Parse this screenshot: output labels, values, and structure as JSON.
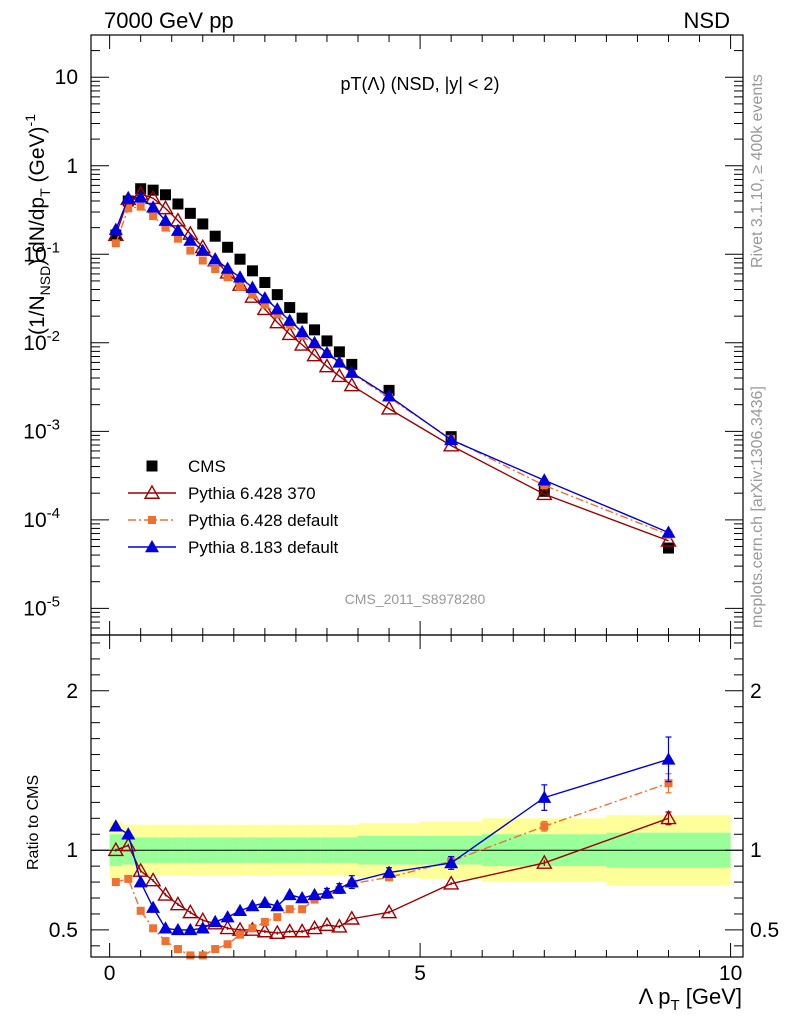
{
  "header": {
    "left_label": "7000 GeV pp",
    "right_label": "NSD"
  },
  "side_text": {
    "rivet": "Rivet 3.1.10, ≥ 400k events",
    "mcplots": "mcplots.cern.ch [arXiv:1306.3436]"
  },
  "watermark": "CMS_2011_S8978280",
  "chart_data": [
    {
      "type": "line",
      "title": "pT(Λ) (NSD, |y| < 2)",
      "xlabel": "Λ p_T [GeV]",
      "ylabel": "(1/N_NSD) dN/dp_T (GeV)^-1",
      "yscale": "log",
      "xlim": [
        -0.3,
        10.2
      ],
      "ylim": [
        5e-06,
        30
      ],
      "legend": [
        "CMS",
        "Pythia 6.428 370",
        "Pythia 6.428 default",
        "Pythia 8.183 default"
      ],
      "legend_position": "bottom-left",
      "series": [
        {
          "name": "CMS",
          "marker": "square",
          "color": "#000000",
          "x": [
            0.1,
            0.3,
            0.5,
            0.7,
            0.9,
            1.1,
            1.3,
            1.5,
            1.7,
            1.9,
            2.1,
            2.3,
            2.5,
            2.7,
            2.9,
            3.1,
            3.3,
            3.5,
            3.7,
            3.9,
            4.5,
            5.5,
            7.0,
            9.0
          ],
          "y": [
            0.165,
            0.4,
            0.55,
            0.53,
            0.47,
            0.37,
            0.29,
            0.22,
            0.16,
            0.12,
            0.088,
            0.065,
            0.048,
            0.035,
            0.025,
            0.019,
            0.014,
            0.0105,
            0.0079,
            0.0057,
            0.0029,
            0.00087,
            0.00021,
            4.8e-05
          ]
        },
        {
          "name": "Pythia 6.428 370",
          "marker": "open-triangle",
          "color": "#a00000",
          "x": [
            0.1,
            0.3,
            0.5,
            0.7,
            0.9,
            1.1,
            1.3,
            1.5,
            1.7,
            1.9,
            2.1,
            2.3,
            2.5,
            2.7,
            2.9,
            3.1,
            3.3,
            3.5,
            3.7,
            3.9,
            4.5,
            5.5,
            7.0,
            9.0
          ],
          "y": [
            0.165,
            0.42,
            0.48,
            0.43,
            0.33,
            0.24,
            0.17,
            0.12,
            0.085,
            0.062,
            0.045,
            0.033,
            0.024,
            0.017,
            0.0125,
            0.0095,
            0.0072,
            0.0054,
            0.0042,
            0.0033,
            0.0018,
            0.00069,
            0.000195,
            5.8e-05
          ]
        },
        {
          "name": "Pythia 6.428 default",
          "marker": "square-small",
          "color": "#f07030",
          "x": [
            0.1,
            0.3,
            0.5,
            0.7,
            0.9,
            1.1,
            1.3,
            1.5,
            1.7,
            1.9,
            2.1,
            2.3,
            2.5,
            2.7,
            2.9,
            3.1,
            3.3,
            3.5,
            3.7,
            3.9,
            4.5,
            5.5,
            7.0,
            9.0
          ],
          "y": [
            0.133,
            0.33,
            0.345,
            0.27,
            0.2,
            0.15,
            0.11,
            0.085,
            0.068,
            0.055,
            0.043,
            0.035,
            0.027,
            0.021,
            0.016,
            0.012,
            0.0095,
            0.0075,
            0.0059,
            0.0045,
            0.0024,
            0.00082,
            0.000245,
            6.8e-05
          ]
        },
        {
          "name": "Pythia 8.183 default",
          "marker": "filled-triangle",
          "color": "#0000dd",
          "x": [
            0.1,
            0.3,
            0.5,
            0.7,
            0.9,
            1.1,
            1.3,
            1.5,
            1.7,
            1.9,
            2.1,
            2.3,
            2.5,
            2.7,
            2.9,
            3.1,
            3.3,
            3.5,
            3.7,
            3.9,
            4.5,
            5.5,
            7.0,
            9.0
          ],
          "y": [
            0.19,
            0.43,
            0.44,
            0.34,
            0.24,
            0.185,
            0.143,
            0.11,
            0.088,
            0.069,
            0.055,
            0.042,
            0.032,
            0.024,
            0.0178,
            0.0133,
            0.01,
            0.0077,
            0.006,
            0.0046,
            0.0025,
            0.0008,
            0.00028,
            7.2e-05
          ]
        }
      ]
    },
    {
      "type": "line",
      "xlabel": "Λ p_T [GeV]",
      "ylabel": "Ratio to CMS",
      "xlim": [
        -0.3,
        10.2
      ],
      "ylim": [
        0.33,
        2.35
      ],
      "uncertainty_bands": {
        "x_edges": [
          0.0,
          0.2,
          0.4,
          0.6,
          0.8,
          1.0,
          1.2,
          1.4,
          1.6,
          1.8,
          2.0,
          2.2,
          2.4,
          2.6,
          2.8,
          3.0,
          3.2,
          3.4,
          3.6,
          3.8,
          4.0,
          5.0,
          6.0,
          8.0,
          10.0
        ],
        "green_half_width": [
          0.1,
          0.09,
          0.08,
          0.08,
          0.08,
          0.08,
          0.08,
          0.08,
          0.08,
          0.08,
          0.08,
          0.08,
          0.08,
          0.08,
          0.08,
          0.08,
          0.08,
          0.08,
          0.08,
          0.08,
          0.09,
          0.09,
          0.1,
          0.11
        ],
        "yellow_half_width": [
          0.18,
          0.16,
          0.16,
          0.16,
          0.16,
          0.16,
          0.16,
          0.16,
          0.16,
          0.16,
          0.16,
          0.16,
          0.16,
          0.16,
          0.16,
          0.16,
          0.16,
          0.16,
          0.16,
          0.16,
          0.17,
          0.18,
          0.2,
          0.22
        ],
        "green_color": "#99ff99",
        "yellow_color": "#ffff99"
      },
      "series": [
        {
          "name": "Pythia 6.428 370",
          "color": "#a00000",
          "x": [
            0.1,
            0.3,
            0.5,
            0.7,
            0.9,
            1.1,
            1.3,
            1.5,
            1.7,
            1.9,
            2.1,
            2.3,
            2.5,
            2.7,
            2.9,
            3.1,
            3.3,
            3.5,
            3.7,
            3.9,
            4.5,
            5.5,
            7.0,
            9.0
          ],
          "y": [
            1.0,
            1.03,
            0.87,
            0.81,
            0.72,
            0.66,
            0.61,
            0.56,
            0.54,
            0.51,
            0.5,
            0.5,
            0.49,
            0.48,
            0.49,
            0.49,
            0.51,
            0.53,
            0.52,
            0.57,
            0.61,
            0.79,
            0.92,
            1.2
          ],
          "err": [
            0.01,
            0.01,
            0.01,
            0.01,
            0.01,
            0.01,
            0.01,
            0.01,
            0.01,
            0.01,
            0.01,
            0.01,
            0.01,
            0.01,
            0.01,
            0.01,
            0.01,
            0.01,
            0.01,
            0.01,
            0.01,
            0.01,
            0.02,
            0.04
          ]
        },
        {
          "name": "Pythia 6.428 default",
          "color": "#f07030",
          "x": [
            0.1,
            0.3,
            0.5,
            0.7,
            0.9,
            1.1,
            1.3,
            1.5,
            1.7,
            1.9,
            2.1,
            2.3,
            2.5,
            2.7,
            2.9,
            3.1,
            3.3,
            3.5,
            3.7,
            3.9,
            4.5,
            5.5,
            7.0,
            9.0
          ],
          "y": [
            0.8,
            0.82,
            0.62,
            0.51,
            0.43,
            0.38,
            0.34,
            0.34,
            0.38,
            0.41,
            0.47,
            0.51,
            0.55,
            0.58,
            0.63,
            0.63,
            0.69,
            0.72,
            0.75,
            0.79,
            0.83,
            0.93,
            1.15,
            1.42
          ],
          "err": [
            0.01,
            0.01,
            0.01,
            0.01,
            0.01,
            0.01,
            0.01,
            0.01,
            0.01,
            0.01,
            0.01,
            0.01,
            0.01,
            0.01,
            0.01,
            0.02,
            0.02,
            0.02,
            0.02,
            0.02,
            0.02,
            0.03,
            0.03,
            0.06
          ]
        },
        {
          "name": "Pythia 8.183 default",
          "color": "#0000dd",
          "x": [
            0.1,
            0.3,
            0.5,
            0.7,
            0.9,
            1.1,
            1.3,
            1.5,
            1.7,
            1.9,
            2.1,
            2.3,
            2.5,
            2.7,
            2.9,
            3.1,
            3.3,
            3.5,
            3.7,
            3.9,
            4.5,
            5.5,
            7.0,
            9.0
          ],
          "y": [
            1.15,
            1.1,
            0.8,
            0.64,
            0.51,
            0.5,
            0.5,
            0.51,
            0.55,
            0.58,
            0.62,
            0.65,
            0.67,
            0.65,
            0.72,
            0.7,
            0.72,
            0.73,
            0.76,
            0.8,
            0.86,
            0.92,
            1.33,
            1.57
          ],
          "err": [
            0.01,
            0.01,
            0.01,
            0.01,
            0.01,
            0.01,
            0.01,
            0.01,
            0.01,
            0.01,
            0.01,
            0.01,
            0.01,
            0.01,
            0.02,
            0.02,
            0.02,
            0.03,
            0.03,
            0.04,
            0.03,
            0.04,
            0.08,
            0.14
          ]
        }
      ],
      "reference_line": 1.0
    }
  ],
  "axes": {
    "top_y_ticks": [
      {
        "base": "10",
        "exp": "-5",
        "value": 1e-05
      },
      {
        "base": "10",
        "exp": "-4",
        "value": 0.0001
      },
      {
        "base": "10",
        "exp": "-3",
        "value": 0.001
      },
      {
        "base": "10",
        "exp": "-2",
        "value": 0.01
      },
      {
        "base": "10",
        "exp": "-1",
        "value": 0.1
      },
      {
        "base": "1",
        "exp": "",
        "value": 1
      },
      {
        "base": "10",
        "exp": "",
        "value": 10
      }
    ],
    "bottom_y_ticks": [
      {
        "label": "0.5",
        "value": 0.5
      },
      {
        "label": "1",
        "value": 1
      },
      {
        "label": "2",
        "value": 2
      }
    ],
    "x_ticks": [
      {
        "label": "0",
        "value": 0
      },
      {
        "label": "5",
        "value": 5
      },
      {
        "label": "10",
        "value": 10
      }
    ]
  }
}
